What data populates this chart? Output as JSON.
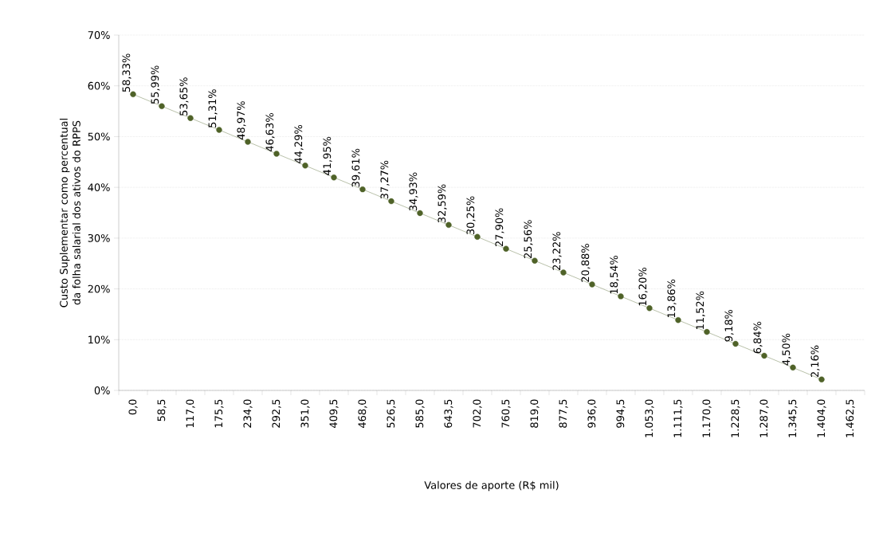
{
  "chart_data": {
    "type": "line",
    "xlabel": "Valores de aporte (R$ mil)",
    "ylabel": "Custo Suplementar como percentual da folha salarial dos ativos do RPPS",
    "categories": [
      "0,0",
      "58,5",
      "117,0",
      "175,5",
      "234,0",
      "292,5",
      "351,0",
      "409,5",
      "468,0",
      "526,5",
      "585,0",
      "643,5",
      "702,0",
      "760,5",
      "819,0",
      "877,5",
      "936,0",
      "994,5",
      "1.053,0",
      "1.111,5",
      "1.170,0",
      "1.228,5",
      "1.287,0",
      "1.345,5",
      "1.404,0",
      "1.462,5"
    ],
    "values": [
      58.33,
      55.99,
      53.65,
      51.31,
      48.97,
      46.63,
      44.29,
      41.95,
      39.61,
      37.27,
      34.93,
      32.59,
      30.25,
      27.9,
      25.56,
      23.22,
      20.88,
      18.54,
      16.2,
      13.86,
      11.52,
      9.18,
      6.84,
      4.5,
      2.16,
      null
    ],
    "value_labels": [
      "58,33%",
      "55,99%",
      "53,65%",
      "51,31%",
      "48,97%",
      "46,63%",
      "44,29%",
      "41,95%",
      "39,61%",
      "37,27%",
      "34,93%",
      "32,59%",
      "30,25%",
      "27,90%",
      "25,56%",
      "23,22%",
      "20,88%",
      "18,54%",
      "16,20%",
      "13,86%",
      "11,52%",
      "9,18%",
      "6,84%",
      "4,50%",
      "2,16%",
      null
    ],
    "color": "#4f6228",
    "marker": "circle",
    "grid": "y",
    "ylim": [
      0,
      70
    ],
    "yticks": [
      {
        "value": 0,
        "label": "0%"
      },
      {
        "value": 10,
        "label": "10%"
      },
      {
        "value": 20,
        "label": "20%"
      },
      {
        "value": 30,
        "label": "30%"
      },
      {
        "value": 40,
        "label": "40%"
      },
      {
        "value": 50,
        "label": "50%"
      },
      {
        "value": 60,
        "label": "60%"
      },
      {
        "value": 70,
        "label": "70%"
      }
    ]
  }
}
